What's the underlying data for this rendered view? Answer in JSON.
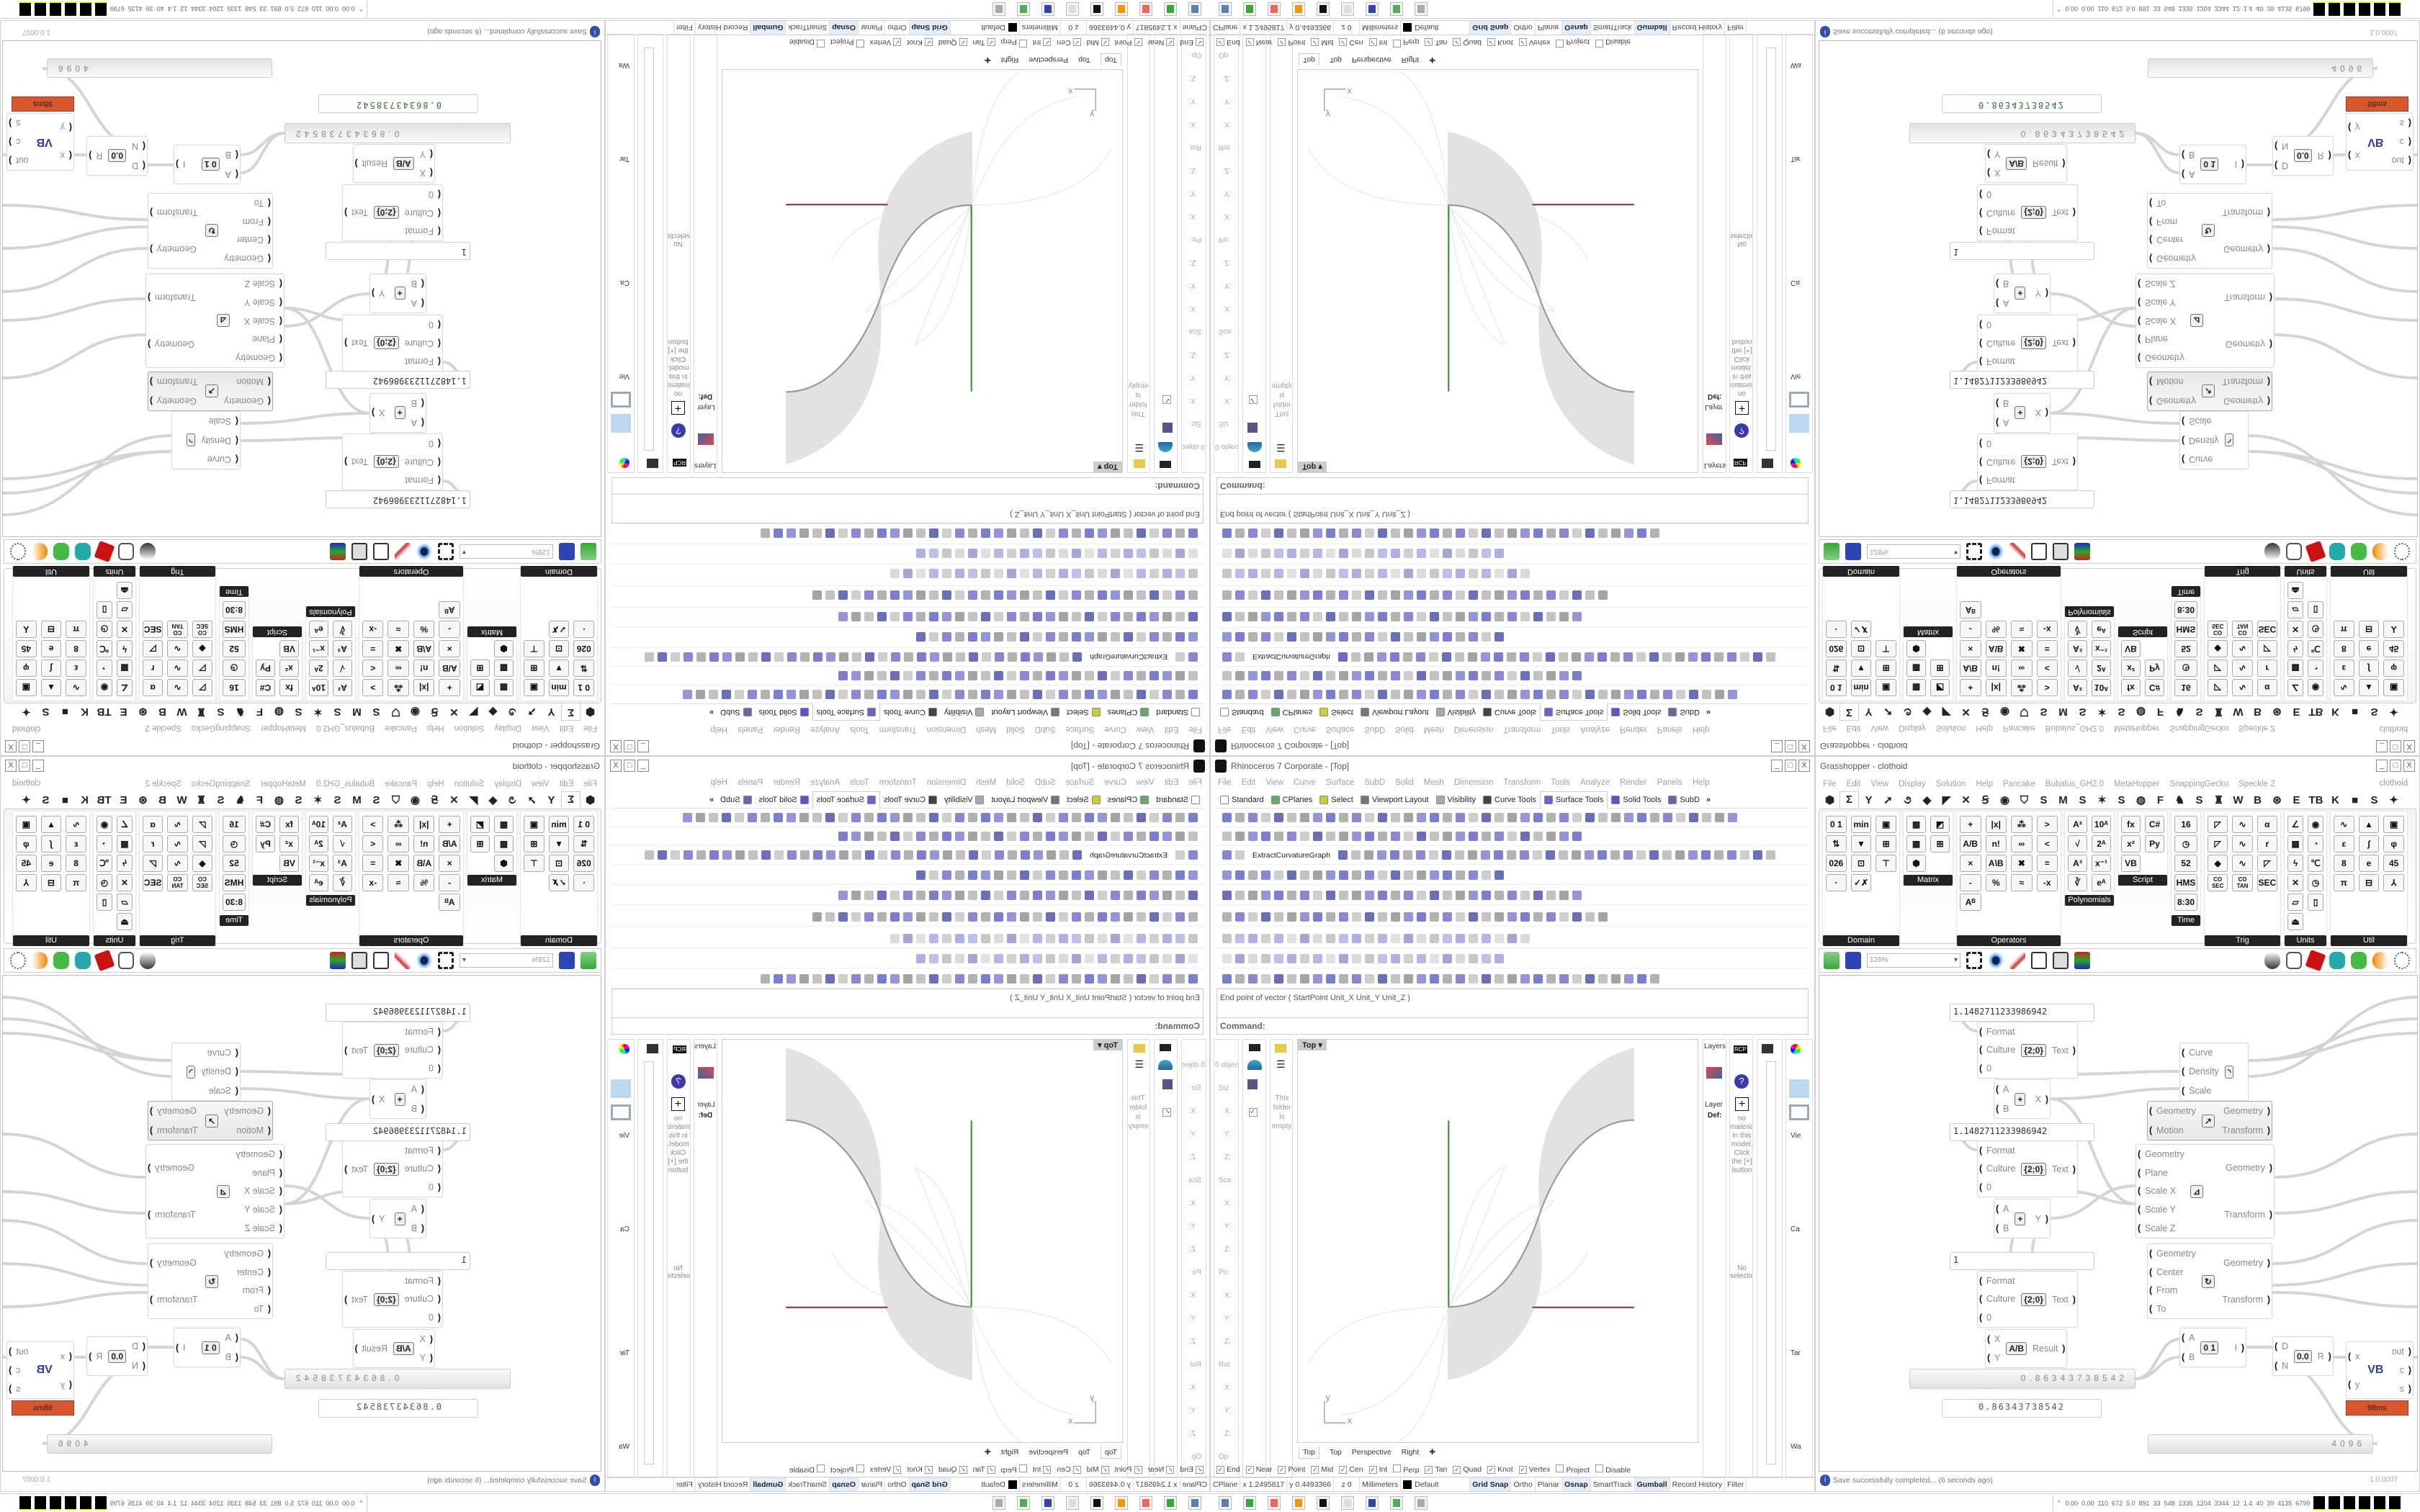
{
  "rhino": {
    "title": "Rhinoceros 7 Corporate - [Top]",
    "window_buttons": [
      "_",
      "□",
      "X"
    ],
    "menu": [
      "File",
      "Edit",
      "View",
      "Curve",
      "Surface",
      "SubD",
      "Solid",
      "Mesh",
      "Dimension",
      "Transform",
      "Tools",
      "Analyze",
      "Render",
      "Panels",
      "Help"
    ],
    "toolbar_tabs": [
      {
        "label": "Standard",
        "icon": "page-icon"
      },
      {
        "label": "CPlanes",
        "icon": "cplane-icon"
      },
      {
        "label": "Select",
        "icon": "select-icon"
      },
      {
        "label": "Viewport Layout",
        "icon": "layout-icon"
      },
      {
        "label": "Visibility",
        "icon": "bulb-icon"
      },
      {
        "label": "Curve Tools",
        "icon": "curve-icon"
      },
      {
        "label": "Surface Tools",
        "icon": "surface-icon",
        "active": true
      },
      {
        "label": "Solid Tools",
        "icon": "solid-icon"
      },
      {
        "label": "SubD",
        "icon": "subd-icon"
      }
    ],
    "toolbar_overflow": "»",
    "extract_label": "ExtractCurvatureGraph",
    "command_history": "End point of vector ( StartPoint  Unit_X  Unit_Y  Unit_Z )",
    "command_prompt": "Command:",
    "viewport": {
      "name": "Top",
      "axis_x": "x",
      "axis_y": "y",
      "colors": {
        "x_axis": "#8b3a36",
        "y_axis": "#3f8f3a",
        "surface": "#e2e2e2",
        "curve": "#9a9a9a"
      }
    },
    "viewport_tabs": [
      "Top",
      "Top",
      "Perspective",
      "Right",
      "✚"
    ],
    "left_panels": {
      "properties": [
        "0 object",
        "Siz",
        "X:",
        "Y:",
        "Z:",
        "Sca",
        "X:",
        "Y:",
        "Z:",
        "Po:",
        "X:",
        "Y:",
        "Z:",
        "Rot",
        "X:",
        "Y:",
        "Z:",
        "Op"
      ],
      "folder_empty": "This folder is empty."
    },
    "right_panels": {
      "layers_title": "Layers",
      "layer_col": "Layer",
      "layer_default": "Def:",
      "materials_msg": "no material in this model. Click the [+] button",
      "no_selection": "No selection",
      "named_view_labels": [
        "Vie",
        "Ca",
        "Tar",
        "Wa"
      ]
    },
    "osnaps": [
      {
        "label": "End",
        "checked": true
      },
      {
        "label": "Near",
        "checked": true
      },
      {
        "label": "Point",
        "checked": true
      },
      {
        "label": "Mid",
        "checked": true
      },
      {
        "label": "Cen",
        "checked": true
      },
      {
        "label": "Int",
        "checked": true
      },
      {
        "label": "Perp",
        "checked": false
      },
      {
        "label": "Tan",
        "checked": true
      },
      {
        "label": "Quad",
        "checked": true
      },
      {
        "label": "Knot",
        "checked": true
      },
      {
        "label": "Vertex",
        "checked": true
      },
      {
        "label": "Project",
        "checked": false
      },
      {
        "label": "Disable",
        "checked": false
      }
    ],
    "status": {
      "cplane": "CPlane",
      "x": "x 1.2495817",
      "y": "y 0.4493366",
      "z": "z 0",
      "units": "Millimeters",
      "layer": "Default",
      "toggles": [
        {
          "label": "Grid Snap",
          "on": true
        },
        {
          "label": "Ortho",
          "on": false
        },
        {
          "label": "Planar",
          "on": false
        },
        {
          "label": "Osnap",
          "on": true
        },
        {
          "label": "SmartTrack",
          "on": false
        },
        {
          "label": "Gumball",
          "on": true
        },
        {
          "label": "Record History",
          "on": false
        },
        {
          "label": "Filter",
          "on": false
        }
      ]
    }
  },
  "grasshopper": {
    "title": "Grasshopper - clothoid",
    "window_buttons": [
      "_",
      "□",
      "X"
    ],
    "menu": [
      "File",
      "Edit",
      "View",
      "Display",
      "Solution",
      "Help",
      "Pancake",
      "Bubalus_GH2.0",
      "MetaHopper",
      "SnappingGecko",
      "Speckle 2"
    ],
    "doc_name": "clothoid",
    "tabs": [
      "⬢",
      "Σ",
      "Y",
      "➚",
      "૭",
      "◆",
      "◤",
      "✕",
      "Ꞩ",
      "◉",
      "⛉",
      "S",
      "M",
      "S",
      "✶",
      "S",
      "◍",
      "F",
      "♞",
      "S",
      "♜",
      "W",
      "B",
      "⊛",
      "E",
      "TB",
      "K",
      "■",
      "S",
      "✦"
    ],
    "active_tab": 1,
    "palettes": [
      {
        "label": "Domain",
        "icons": [
          "0 1",
          "min",
          "▣",
          "⇅",
          "▼",
          "⊞",
          "026",
          "⊡",
          "⊤",
          "·",
          "✓✗"
        ]
      },
      {
        "label": "Matrix",
        "icons": [
          "▦",
          "◩",
          "▦",
          "⊞",
          "⬢"
        ]
      },
      {
        "label": "Operators",
        "icons": [
          "+",
          "|x|",
          "⁂",
          ">",
          "A/B",
          "n!",
          "∞",
          "<",
          "×",
          "A\\B",
          "✖",
          "=",
          "-",
          "%",
          "≈",
          "-x",
          "Aᴮ"
        ]
      },
      {
        "label": "Polynomials",
        "icons": [
          "A²",
          "10ᴬ",
          "√",
          "2ᴬ",
          "A³",
          "x⁻¹",
          "∛",
          "eᴬ"
        ]
      },
      {
        "label": "Script",
        "icons": [
          "fx",
          "C#",
          "x²",
          "Py",
          "VB"
        ]
      },
      {
        "label": "Time",
        "icons": [
          "16",
          "◷",
          "52",
          "HMS",
          "8:30"
        ]
      },
      {
        "label": "Trig",
        "icons": [
          "◸",
          "∿",
          "α",
          "◸",
          "∿",
          "r",
          "◆",
          "∿",
          "◸",
          "CO SEC",
          "CO TAN",
          "SEC"
        ]
      },
      {
        "label": "Units",
        "icons": [
          "∠",
          "◉",
          "▦",
          "◔",
          "ϟ",
          "℃",
          "✕",
          "◷",
          "▱",
          "▯",
          "⏏"
        ]
      },
      {
        "label": "Util",
        "icons": [
          "∿",
          "▲",
          "▣",
          "ε",
          "∫",
          "φ",
          "8",
          "e",
          "45",
          "π",
          "⊟",
          "⅄"
        ]
      }
    ],
    "zoom": "126%",
    "components": [
      {
        "type": "panel",
        "value": "1.1482711233986942"
      },
      {
        "type": "comp",
        "inputs": [
          "Format",
          "Culture",
          "0"
        ],
        "outputs": [
          "Text"
        ],
        "icon": "{2;0}"
      },
      {
        "type": "comp",
        "inputs": [
          "A",
          "B"
        ],
        "outputs": [
          "X"
        ],
        "icon": "+"
      },
      {
        "type": "comp",
        "inputs": [
          "Curve",
          "Density",
          "Scale"
        ],
        "outputs": [],
        "icon": "◝"
      },
      {
        "type": "comp",
        "grey": true,
        "inputs": [
          "Geometry",
          "Motion"
        ],
        "outputs": [
          "Geometry",
          "Transform"
        ],
        "icon": "↗"
      },
      {
        "type": "panel",
        "value": "1.1482711233986942"
      },
      {
        "type": "comp",
        "inputs": [
          "Format",
          "Culture",
          "0"
        ],
        "outputs": [
          "Text"
        ],
        "icon": "{2;0}"
      },
      {
        "type": "comp",
        "inputs": [
          "A",
          "B"
        ],
        "outputs": [
          "Y"
        ],
        "icon": "+"
      },
      {
        "type": "comp",
        "inputs": [
          "Geometry",
          "Plane",
          "Scale X",
          "Scale Y",
          "Scale Z"
        ],
        "outputs": [
          "Geometry",
          "Transform"
        ],
        "icon": "⊿"
      },
      {
        "type": "panel",
        "value": "1"
      },
      {
        "type": "comp",
        "inputs": [
          "Format",
          "Culture",
          "0"
        ],
        "outputs": [
          "Text"
        ],
        "icon": "{2;0}"
      },
      {
        "type": "comp",
        "inputs": [
          "X",
          "Y"
        ],
        "outputs": [
          "Result"
        ],
        "icon": "A/B"
      },
      {
        "type": "slider",
        "value": "0.86343738542"
      },
      {
        "type": "panel",
        "value": "0.86343738542",
        "green": true
      },
      {
        "type": "comp",
        "inputs": [
          "Geometry",
          "Center",
          "From",
          "To"
        ],
        "outputs": [
          "Geometry",
          "Transform"
        ],
        "icon": "↻"
      },
      {
        "type": "comp",
        "inputs": [
          "A",
          "B"
        ],
        "outputs": [
          "I"
        ],
        "icon": "0 1"
      },
      {
        "type": "comp",
        "inputs": [
          "D",
          "N"
        ],
        "outputs": [
          "R"
        ],
        "icon": "0.0"
      },
      {
        "type": "comp",
        "inputs": [
          "x",
          "y"
        ],
        "outputs": [
          "out",
          "c",
          "s"
        ],
        "icon": "VB",
        "badge": "98ms"
      },
      {
        "type": "slider",
        "value": "4096"
      }
    ],
    "status_message": "Save successfully completed... (6 seconds ago)",
    "version": "1.0.0007",
    "badge_color": "#d9582b"
  },
  "taskbar": {
    "apps": [
      "remote-desktop-icon",
      "tablet-icon",
      "firefox-icon",
      "blender-icon",
      "rhino-icon",
      "notepad-icon",
      "save64-icon",
      "monitor-icon",
      "speaker-icon"
    ],
    "stats": [
      "0.00",
      "0.00",
      "110",
      "672",
      "5.0",
      "891",
      "33",
      "548",
      "1335",
      "1204",
      "3344",
      "12",
      "1.4",
      "40",
      "39",
      "4135",
      "6799"
    ]
  }
}
